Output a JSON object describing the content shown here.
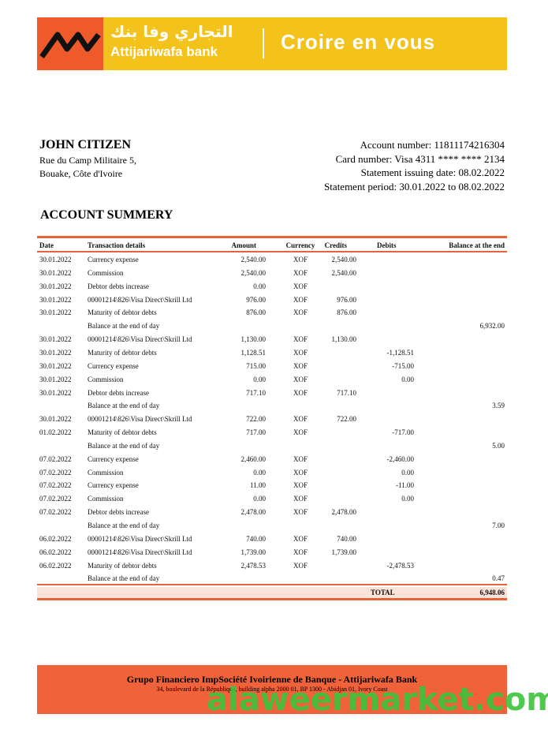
{
  "header": {
    "logo_arabic": "التجاري وفا بنك",
    "logo_name": "Attijariwafa bank",
    "slogan": "Croire en vous"
  },
  "customer": {
    "name": "JOHN CITIZEN",
    "address_line1": "Rue du Camp Militaire 5,",
    "address_line2": "Bouake, Côte d'Ivoire"
  },
  "account": {
    "account_number": "Account number: 11811174216304",
    "card_number": "Card number: Visa 4311 **** **** 2134",
    "issue_date": "Statement issuing date: 08.02.2022",
    "period": "Statement period: 30.01.2022 to 08.02.2022"
  },
  "section_title": "ACCOUNT SUMMERY",
  "table": {
    "columns": {
      "date": "Date",
      "details": "Transaction details",
      "amount": "Amount",
      "currency": "Currency",
      "credits": "Credits",
      "debits": "Debits",
      "balance": "Balance at the end"
    },
    "rows": [
      {
        "date": "30.01.2022",
        "details": "Currency expense",
        "amount": "2,540.00",
        "currency": "XOF",
        "credits": "2,540.00"
      },
      {
        "date": "30.01.2022",
        "details": "Commission",
        "amount": "2,540.00",
        "currency": "XOF",
        "credits": "2,540.00"
      },
      {
        "date": "30.01.2022",
        "details": "Debtor debts increase",
        "amount": "0.00",
        "currency": "XOF"
      },
      {
        "date": "30.01.2022",
        "details": "00001214\\826\\Visa Direct\\Skrill Ltd",
        "amount": "976.00",
        "currency": "XOF",
        "credits": "976.00"
      },
      {
        "date": "30.01.2022",
        "details": "Maturity of debtor debts",
        "amount": "876.00",
        "currency": "XOF",
        "credits": "876.00"
      },
      {
        "details": "Balance at the end of day",
        "balance": "6,932.00"
      },
      {
        "date": "30.01.2022",
        "details": "00001214\\826\\Visa Direct\\Skrill Ltd",
        "amount": "1,130.00",
        "currency": "XOF",
        "credits": "1,130.00"
      },
      {
        "date": "30.01.2022",
        "details": "Maturity of debtor debts",
        "amount": "1,128.51",
        "currency": "XOF",
        "debits": "-1,128.51"
      },
      {
        "date": "30.01.2022",
        "details": "Currency expense",
        "amount": "715.00",
        "currency": "XOF",
        "debits": "-715.00"
      },
      {
        "date": "30.01.2022",
        "details": "Commission",
        "amount": "0.00",
        "currency": "XOF",
        "debits": "0.00"
      },
      {
        "date": "30.01.2022",
        "details": "Debtor debts increase",
        "amount": "717.10",
        "currency": "XOF",
        "credits": "717.10"
      },
      {
        "details": "Balance at the end of day",
        "balance": "3.59"
      },
      {
        "date": "30.01.2022",
        "details": "00001214\\826\\Visa Direct\\Skrill Ltd",
        "amount": "722.00",
        "currency": "XOF",
        "credits": "722.00"
      },
      {
        "date": "01.02.2022",
        "details": "Maturity of debtor debts",
        "amount": "717.00",
        "currency": "XOF",
        "debits": "-717.00"
      },
      {
        "details": "Balance at the end of day",
        "balance": "5.00"
      },
      {
        "date": "07.02.2022",
        "details": "Currency expense",
        "amount": "2,460.00",
        "currency": "XOF",
        "debits": "-2,460.00"
      },
      {
        "date": "07.02.2022",
        "details": "Commission",
        "amount": "0.00",
        "currency": "XOF",
        "debits": "0.00"
      },
      {
        "date": "07.02.2022",
        "details": "Currency expense",
        "amount": "11.00",
        "currency": "XOF",
        "debits": "-11.00"
      },
      {
        "date": "07.02.2022",
        "details": "Commission",
        "amount": "0.00",
        "currency": "XOF",
        "debits": "0.00"
      },
      {
        "date": "07.02.2022",
        "details": "Debtor debts increase",
        "amount": "2,478.00",
        "currency": "XOF",
        "credits": "2,478.00"
      },
      {
        "details": "Balance at the end of day",
        "balance": "7.00"
      },
      {
        "date": "06.02.2022",
        "details": "00001214\\826\\Visa Direct\\Skrill Ltd",
        "amount": "740.00",
        "currency": "XOF",
        "credits": "740.00"
      },
      {
        "date": "06.02.2022",
        "details": "00001214\\826\\Visa Direct\\Skrill Ltd",
        "amount": "1,739.00",
        "currency": "XOF",
        "credits": "1,739.00"
      },
      {
        "date": "06.02.2022",
        "details": "Maturity of debtor debts",
        "amount": "2,478.53",
        "currency": "XOF",
        "debits": "-2,478.53"
      },
      {
        "details": "Balance at the end of day",
        "balance": "0.47"
      }
    ],
    "total_label": "TOTAL",
    "total_value": "6,948.06"
  },
  "footer": {
    "title": "Grupo Financiero ImpSociété Ivoirienne de Banque - Attijariwafa Bank",
    "address": "34, boulevard de la République, building alpha 2000 01, BP 1300 - Abidjan 01, Ivory Coast"
  },
  "watermark": "alaweermarket.com"
}
